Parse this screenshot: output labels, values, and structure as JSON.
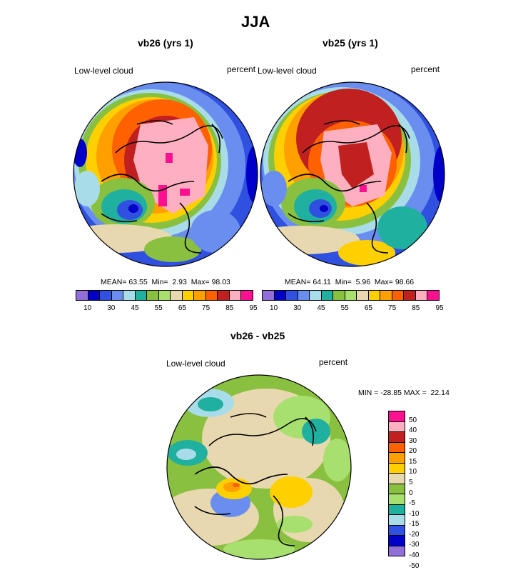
{
  "figure": {
    "title": "JJA"
  },
  "panels": [
    {
      "subtitle": "vb26 (yrs 1)",
      "left_label": "Low-level cloud",
      "right_label": "percent",
      "stats": {
        "mean_label": "MEAN=",
        "mean": "63.55",
        "min_label": "Min=",
        "min": "2.93",
        "max_label": "Max=",
        "max": "98.03"
      }
    },
    {
      "subtitle": "vb25 (yrs 1)",
      "left_label": "Low-level cloud",
      "right_label": "percent",
      "stats": {
        "mean_label": "MEAN=",
        "mean": "64.11",
        "min_label": "Min=",
        "min": "5.96",
        "max_label": "Max=",
        "max": "98.66"
      }
    }
  ],
  "abs_colorbar": {
    "colors": [
      "#9070d8",
      "#0000c8",
      "#3050e0",
      "#6a8ef0",
      "#a8dce8",
      "#20b0a0",
      "#8ac040",
      "#a8e070",
      "#e8d8b0",
      "#ffd000",
      "#ffa000",
      "#ff6000",
      "#c02020",
      "#ffb0c0",
      "#ff1090"
    ],
    "tick_labels": [
      "10",
      "30",
      "45",
      "55",
      "65",
      "75",
      "85",
      "95"
    ]
  },
  "diff_panel": {
    "subtitle": "vb26 - vb25",
    "left_label": "Low-level cloud",
    "right_label": "percent",
    "minmax_text": "MIN = -28.85 MAX =  22.14"
  },
  "diff_colorbar": {
    "colors": [
      "#ff1090",
      "#ffb0c0",
      "#c02020",
      "#ff6000",
      "#ffa000",
      "#ffd000",
      "#e8d8b0",
      "#8ac040",
      "#a8e070",
      "#20b0a0",
      "#a8dce8",
      "#3050e0",
      "#0000c8",
      "#9070d8"
    ],
    "tick_labels": [
      "50",
      "40",
      "30",
      "20",
      "15",
      "10",
      "5",
      "0",
      "-5",
      "-10",
      "-15",
      "-20",
      "-30",
      "-40",
      "-50"
    ]
  }
}
